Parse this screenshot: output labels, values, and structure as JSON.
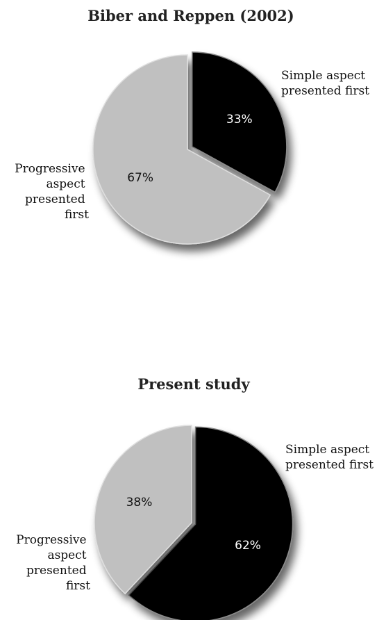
{
  "chart_data": [
    {
      "type": "pie",
      "title": "Biber and Reppen (2002)",
      "slices": [
        {
          "label": "Simple aspect presented first",
          "value": 33,
          "value_label": "33%",
          "color": "#000000",
          "text_color": "#ffffff",
          "exploded": true
        },
        {
          "label": "Progressive aspect presented first",
          "value": 67,
          "value_label": "67%",
          "color": "#c0c0c0",
          "text_color": "#111111",
          "exploded": false
        }
      ],
      "labels": {
        "simple": [
          "Simple aspect",
          "presented first"
        ],
        "progressive": [
          "Progressive",
          "aspect",
          "presented",
          "first"
        ]
      },
      "legend": "none"
    },
    {
      "type": "pie",
      "title": "Present study",
      "slices": [
        {
          "label": "Simple aspect presented first",
          "value": 62,
          "value_label": "62%",
          "color": "#000000",
          "text_color": "#ffffff",
          "exploded": true
        },
        {
          "label": "Progressive aspect presented first",
          "value": 38,
          "value_label": "38%",
          "color": "#c0c0c0",
          "text_color": "#111111",
          "exploded": false
        }
      ],
      "labels": {
        "simple": [
          "Simple aspect",
          "presented first"
        ],
        "progressive": [
          "Progressive",
          "aspect",
          "presented",
          "first"
        ]
      },
      "legend": "none"
    }
  ]
}
